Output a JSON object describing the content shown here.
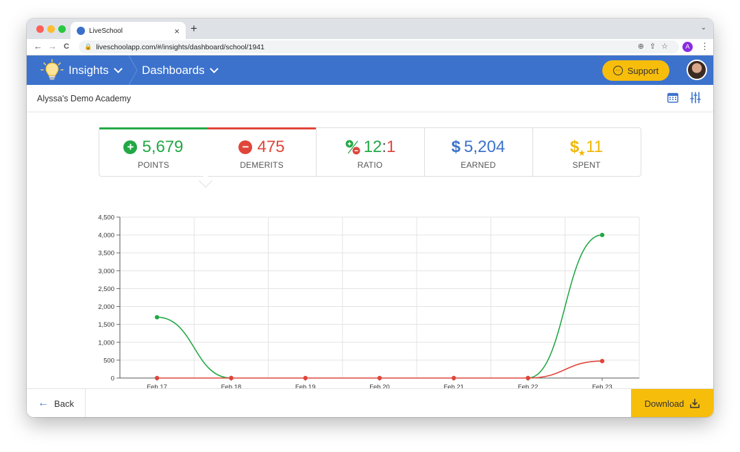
{
  "browser": {
    "tab_title": "LiveSchool",
    "new_tab": "+",
    "tab_close": "×",
    "url": "liveschoolapp.com/#/insights/dashboard/school/1941",
    "profile_initial": "A",
    "back_glyph": "←",
    "forward_glyph": "→",
    "reload_glyph": "C",
    "menu_glyph": "⋮",
    "tabmenu_glyph": "⌄",
    "omni_icons": "⊕⇪☆",
    "traffic_colors": [
      "#ff5f57",
      "#febc2e",
      "#28c840"
    ]
  },
  "appbar": {
    "insights_label": "Insights",
    "dashboards_label": "Dashboards",
    "support_label": "Support",
    "support_glyph": "…",
    "color": "#3c72cc",
    "accent": "#f7bd0b"
  },
  "subheader": {
    "school_name": "Alyssa's Demo Academy"
  },
  "stats": [
    {
      "value": "5,679",
      "label": "POINTS",
      "color": "#22a845",
      "icon_glyph": "+"
    },
    {
      "value": "475",
      "label": "DEMERITS",
      "color": "#e0453a",
      "icon_glyph": "−"
    },
    {
      "value_left": "12",
      "value_sep": ":",
      "value_right": "1",
      "label": "RATIO",
      "icon": "ratio-icon"
    },
    {
      "value": "5,204",
      "label": "EARNED",
      "color": "#3c72cc",
      "prefix": "$"
    },
    {
      "value": "11",
      "label": "SPENT",
      "color": "#f2b705",
      "prefix": "$"
    }
  ],
  "chart_data": {
    "type": "line",
    "categories": [
      "Feb 17",
      "Feb 18",
      "Feb 19",
      "Feb 20",
      "Feb 21",
      "Feb 22",
      "Feb 23"
    ],
    "ylim": [
      0,
      4500
    ],
    "yticks": [
      "0",
      "500",
      "1,000",
      "1,500",
      "2,000",
      "2,500",
      "3,000",
      "3,500",
      "4,000",
      "4,500"
    ],
    "grid": true,
    "series": [
      {
        "values": [
          1700,
          0,
          null,
          null,
          null,
          0,
          4000
        ],
        "color": "#22a845"
      },
      {
        "values": [
          0,
          0,
          0,
          0,
          0,
          0,
          475
        ],
        "color": "#e0453a"
      }
    ]
  },
  "footer": {
    "back_label": "Back",
    "back_glyph": "←",
    "download_label": "Download"
  }
}
